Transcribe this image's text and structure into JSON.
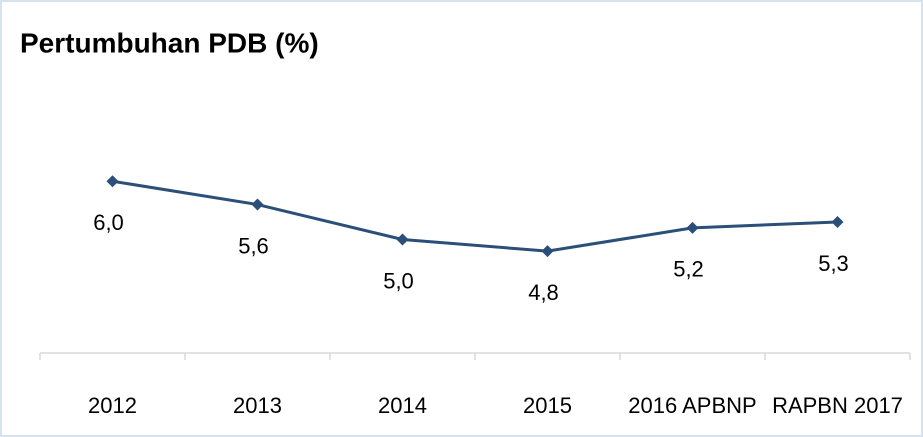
{
  "chart_data": {
    "type": "line",
    "title": "Pertumbuhan PDB (%)",
    "categories": [
      "2012",
      "2013",
      "2014",
      "2015",
      "2016 APBNP",
      "RAPBN 2017"
    ],
    "series": [
      {
        "name": "Pertumbuhan PDB",
        "color": "#2b4f78",
        "values": [
          6.0,
          5.6,
          5.0,
          4.8,
          5.2,
          5.3
        ],
        "value_labels": [
          "6,0",
          "5,6",
          "5,0",
          "4,8",
          "5,2",
          "5,3"
        ]
      }
    ],
    "ylim": [
      3,
      7
    ]
  }
}
